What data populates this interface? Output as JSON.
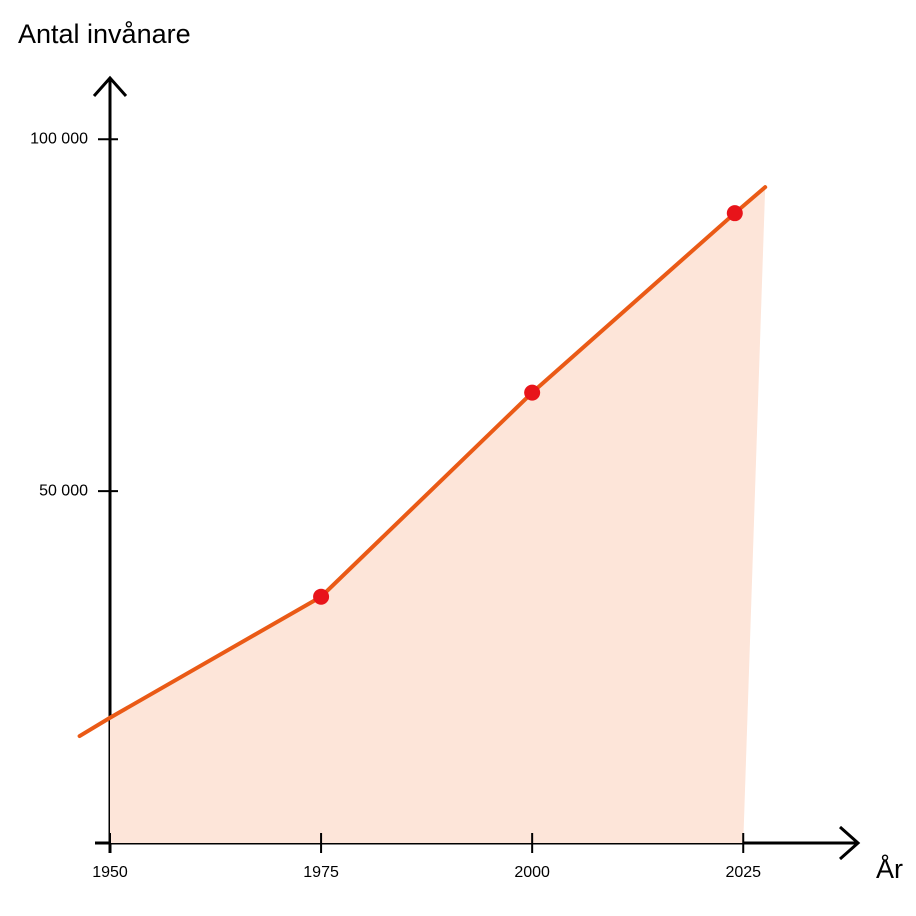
{
  "chart_data": {
    "type": "line",
    "y_label": "Antal invånare",
    "x_label": "År",
    "xlim": [
      1950,
      2038
    ],
    "ylim": [
      0,
      108000
    ],
    "xticks": [
      1950,
      1975,
      2000,
      2025
    ],
    "yticks": [
      {
        "value": 50000,
        "label": "50 000"
      },
      {
        "value": 100000,
        "label": "100 000"
      }
    ],
    "area_color": "#fde5d9",
    "series": [
      {
        "color": "#ea5a16",
        "x": [
          1946.4,
          1950,
          1975,
          2000,
          2024,
          2027.6
        ],
        "values": [
          15200,
          17800,
          35000,
          64000,
          89500,
          93200
        ]
      }
    ],
    "markers": {
      "color": "#e8141a",
      "x": [
        1975,
        2000,
        2024
      ],
      "values": [
        35000,
        64000,
        89500
      ]
    }
  }
}
